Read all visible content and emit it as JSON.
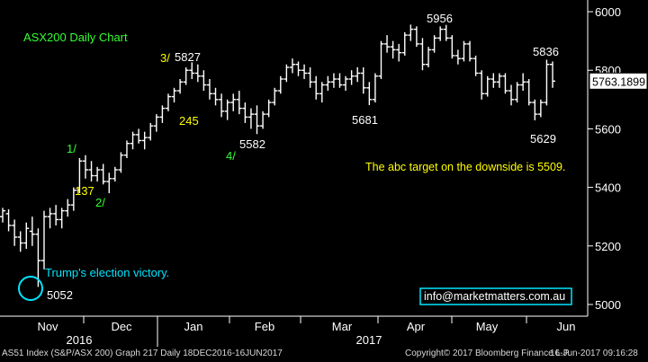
{
  "colors": {
    "background": "#000000",
    "bars": "#ffffff",
    "annotation_green": "#33ff33",
    "annotation_yellow": "#ffff00",
    "annotation_cyan": "#00e5ff",
    "axis_text": "#ffffff",
    "last_price_box": "#ffffff"
  },
  "chart_data": {
    "type": "ohlc",
    "title": "ASX200 Daily Chart",
    "y_axis": {
      "side": "right",
      "ticks": [
        5000,
        5200,
        5400,
        5600,
        5800,
        6000
      ],
      "range": [
        4960,
        6040
      ]
    },
    "x_axis": {
      "month_labels": [
        "Nov",
        "Dec",
        "Jan",
        "Feb",
        "Mar",
        "Apr",
        "May",
        "Jun"
      ],
      "year_labels": [
        "2016",
        "2017"
      ]
    },
    "last_price_label": "5763.1899",
    "series": [
      {
        "name": "AS51 Index",
        "points": [
          [
            5300,
            5330,
            5280,
            5320
          ],
          [
            5310,
            5325,
            5250,
            5270
          ],
          [
            5270,
            5290,
            5200,
            5230
          ],
          [
            5230,
            5250,
            5180,
            5210
          ],
          [
            5210,
            5280,
            5190,
            5260
          ],
          [
            5250,
            5300,
            5200,
            5240
          ],
          [
            5240,
            5260,
            5060,
            5150
          ],
          [
            5150,
            5320,
            5120,
            5300
          ],
          [
            5300,
            5330,
            5260,
            5310
          ],
          [
            5310,
            5340,
            5270,
            5290
          ],
          [
            5290,
            5330,
            5260,
            5320
          ],
          [
            5320,
            5360,
            5300,
            5340
          ],
          [
            5340,
            5400,
            5320,
            5390
          ],
          [
            5390,
            5500,
            5380,
            5490
          ],
          [
            5490,
            5510,
            5430,
            5460
          ],
          [
            5460,
            5490,
            5420,
            5440
          ],
          [
            5440,
            5470,
            5420,
            5460
          ],
          [
            5460,
            5480,
            5410,
            5420
          ],
          [
            5420,
            5450,
            5380,
            5430
          ],
          [
            5430,
            5470,
            5420,
            5460
          ],
          [
            5460,
            5520,
            5450,
            5510
          ],
          [
            5510,
            5560,
            5500,
            5550
          ],
          [
            5550,
            5590,
            5530,
            5580
          ],
          [
            5580,
            5600,
            5550,
            5560
          ],
          [
            5560,
            5590,
            5530,
            5570
          ],
          [
            5570,
            5620,
            5560,
            5610
          ],
          [
            5610,
            5650,
            5590,
            5640
          ],
          [
            5640,
            5680,
            5620,
            5670
          ],
          [
            5670,
            5720,
            5660,
            5710
          ],
          [
            5710,
            5740,
            5690,
            5730
          ],
          [
            5730,
            5770,
            5720,
            5760
          ],
          [
            5760,
            5810,
            5750,
            5800
          ],
          [
            5800,
            5827,
            5770,
            5790
          ],
          [
            5790,
            5820,
            5760,
            5780
          ],
          [
            5780,
            5800,
            5730,
            5750
          ],
          [
            5750,
            5770,
            5700,
            5720
          ],
          [
            5720,
            5740,
            5680,
            5700
          ],
          [
            5700,
            5720,
            5640,
            5660
          ],
          [
            5660,
            5700,
            5630,
            5690
          ],
          [
            5690,
            5720,
            5660,
            5700
          ],
          [
            5700,
            5730,
            5650,
            5670
          ],
          [
            5670,
            5690,
            5620,
            5640
          ],
          [
            5640,
            5670,
            5600,
            5650
          ],
          [
            5650,
            5680,
            5582,
            5610
          ],
          [
            5610,
            5660,
            5600,
            5650
          ],
          [
            5650,
            5700,
            5640,
            5690
          ],
          [
            5690,
            5740,
            5680,
            5730
          ],
          [
            5730,
            5780,
            5720,
            5770
          ],
          [
            5770,
            5820,
            5760,
            5810
          ],
          [
            5810,
            5840,
            5790,
            5820
          ],
          [
            5820,
            5830,
            5780,
            5800
          ],
          [
            5800,
            5820,
            5770,
            5790
          ],
          [
            5790,
            5810,
            5740,
            5760
          ],
          [
            5760,
            5780,
            5700,
            5720
          ],
          [
            5720,
            5760,
            5690,
            5750
          ],
          [
            5750,
            5780,
            5730,
            5760
          ],
          [
            5760,
            5790,
            5740,
            5770
          ],
          [
            5770,
            5790,
            5740,
            5750
          ],
          [
            5750,
            5780,
            5730,
            5770
          ],
          [
            5770,
            5800,
            5750,
            5780
          ],
          [
            5780,
            5810,
            5760,
            5790
          ],
          [
            5790,
            5810,
            5720,
            5740
          ],
          [
            5740,
            5760,
            5681,
            5700
          ],
          [
            5700,
            5790,
            5690,
            5780
          ],
          [
            5780,
            5900,
            5770,
            5890
          ],
          [
            5890,
            5920,
            5860,
            5880
          ],
          [
            5880,
            5900,
            5840,
            5870
          ],
          [
            5870,
            5890,
            5830,
            5860
          ],
          [
            5860,
            5930,
            5850,
            5920
          ],
          [
            5920,
            5956,
            5900,
            5940
          ],
          [
            5940,
            5950,
            5880,
            5890
          ],
          [
            5890,
            5910,
            5800,
            5820
          ],
          [
            5820,
            5880,
            5810,
            5870
          ],
          [
            5870,
            5920,
            5860,
            5910
          ],
          [
            5910,
            5950,
            5900,
            5940
          ],
          [
            5940,
            5955,
            5900,
            5910
          ],
          [
            5910,
            5920,
            5840,
            5850
          ],
          [
            5850,
            5870,
            5820,
            5840
          ],
          [
            5840,
            5900,
            5830,
            5890
          ],
          [
            5890,
            5900,
            5830,
            5840
          ],
          [
            5840,
            5850,
            5780,
            5790
          ],
          [
            5790,
            5800,
            5700,
            5720
          ],
          [
            5720,
            5780,
            5710,
            5770
          ],
          [
            5770,
            5790,
            5740,
            5760
          ],
          [
            5760,
            5790,
            5740,
            5780
          ],
          [
            5780,
            5790,
            5720,
            5730
          ],
          [
            5730,
            5750,
            5680,
            5700
          ],
          [
            5700,
            5760,
            5690,
            5750
          ],
          [
            5750,
            5790,
            5730,
            5760
          ],
          [
            5760,
            5770,
            5680,
            5690
          ],
          [
            5690,
            5700,
            5629,
            5650
          ],
          [
            5650,
            5700,
            5640,
            5690
          ],
          [
            5690,
            5836,
            5680,
            5820
          ],
          [
            5820,
            5830,
            5740,
            5763
          ]
        ]
      }
    ],
    "annotations": [
      {
        "id": "title",
        "text": "ASX200 Daily Chart",
        "color": "annotation_green"
      },
      {
        "id": "w3",
        "text": "3/",
        "color": "annotation_yellow"
      },
      {
        "id": "v5827",
        "text": "5827",
        "color": "axis_text"
      },
      {
        "id": "w1",
        "text": "1/",
        "color": "annotation_green"
      },
      {
        "id": "v137",
        "text": "137",
        "color": "annotation_yellow"
      },
      {
        "id": "w2",
        "text": "2/",
        "color": "annotation_green"
      },
      {
        "id": "v245",
        "text": "245",
        "color": "annotation_yellow"
      },
      {
        "id": "w4",
        "text": "4/",
        "color": "annotation_green"
      },
      {
        "id": "v5582",
        "text": "5582",
        "color": "axis_text"
      },
      {
        "id": "v5681",
        "text": "5681",
        "color": "axis_text"
      },
      {
        "id": "v5956",
        "text": "5956",
        "color": "axis_text"
      },
      {
        "id": "v5836",
        "text": "5836",
        "color": "axis_text"
      },
      {
        "id": "v5629",
        "text": "5629",
        "color": "axis_text"
      },
      {
        "id": "abc",
        "text": "The abc target on the downside is 5509.",
        "color": "annotation_yellow"
      },
      {
        "id": "trump",
        "text": "Trump's election victory.",
        "color": "annotation_cyan"
      },
      {
        "id": "v5052",
        "text": "5052",
        "color": "axis_text"
      },
      {
        "id": "email",
        "text": "info@marketmatters.com.au",
        "color": "axis_text"
      }
    ]
  },
  "footer": {
    "left": "AS51 Index (S&P/ASX 200) Graph 217  Daily 18DEC2016-16JUN2017",
    "copyright": "Copyright© 2017 Bloomberg Finance L.P.",
    "timestamp": "16-Jun-2017 09:16:28"
  }
}
